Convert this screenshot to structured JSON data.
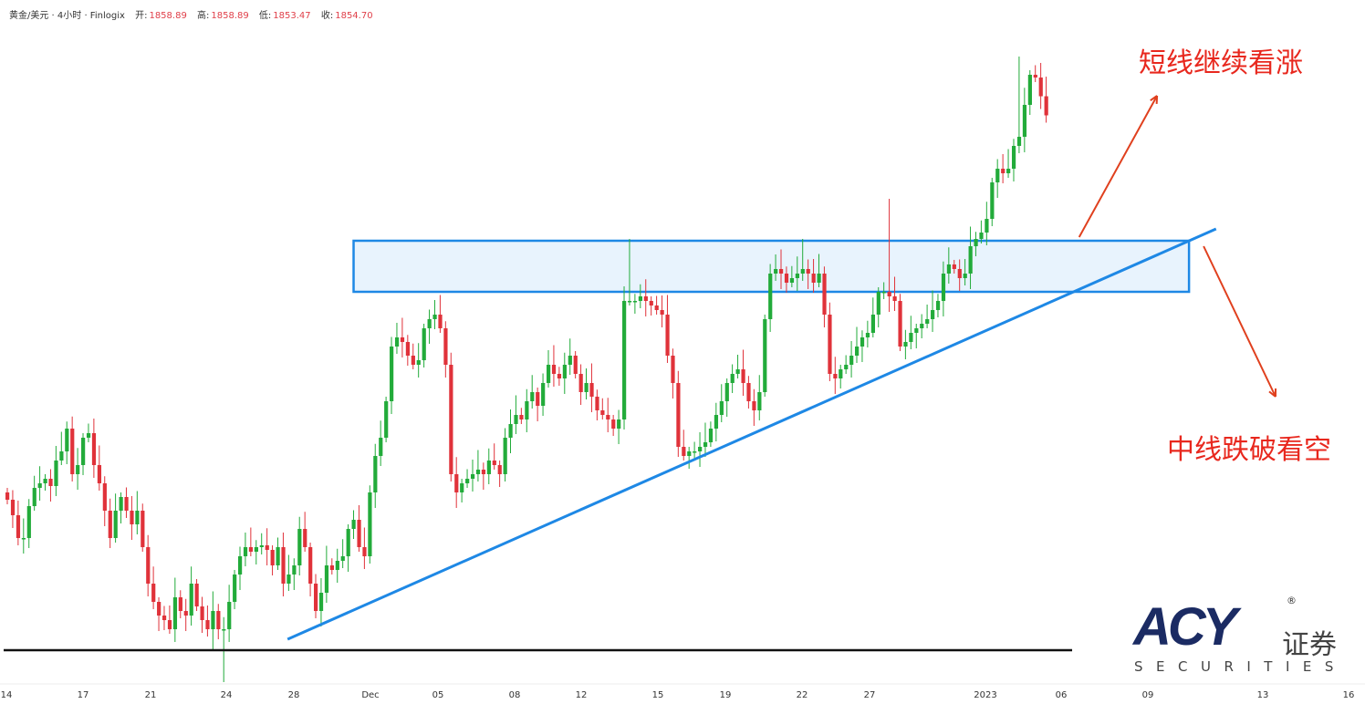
{
  "header": {
    "symbol": "黄金/美元 · 4小时 · Finlogix",
    "open_label": "开:",
    "open": "1858.89",
    "high_label": "高:",
    "high": "1858.89",
    "low_label": "低:",
    "low": "1853.47",
    "close_label": "收:",
    "close": "1854.70"
  },
  "annotations_text": {
    "bullish": "短线继续看涨",
    "bearish": "中线跌破看空"
  },
  "logo": {
    "brand": "ACY",
    "reg": "®",
    "cn": "证券",
    "sub": "SECURITIES"
  },
  "colors": {
    "up": "#22ab3a",
    "down": "#e0323a",
    "trend": "#1e88e5",
    "zone_fill": "#e8f3fd",
    "arrow": "#e0401e",
    "support": "#111111"
  },
  "chart_data": {
    "type": "candlestick",
    "title": "黄金/美元 · 4小时",
    "xlabel": "",
    "ylabel": "",
    "x_ticks": [
      "14",
      "17",
      "21",
      "24",
      "28",
      "Dec",
      "05",
      "08",
      "12",
      "15",
      "19",
      "22",
      "27",
      "2023",
      "06",
      "09",
      "13",
      "16"
    ],
    "ylim": [
      1726,
      1880
    ],
    "closes": [
      1770.4,
      1767,
      1762,
      1762,
      1769,
      1773,
      1774,
      1775,
      1773.4,
      1779,
      1781,
      1786,
      1776,
      1778,
      1784,
      1785,
      1778,
      1774,
      1768,
      1762,
      1768,
      1771,
      1768,
      1765,
      1768,
      1760,
      1752,
      1748,
      1745,
      1744,
      1742,
      1749,
      1746,
      1745,
      1752,
      1747,
      1744,
      1742,
      1746,
      1742,
      1742,
      1748,
      1754,
      1758,
      1760,
      1759,
      1760,
      1760.4,
      1759.4,
      1756,
      1760,
      1752,
      1754,
      1756,
      1764,
      1760,
      1752,
      1746,
      1750,
      1756,
      1755,
      1757,
      1758,
      1764,
      1766,
      1760,
      1758,
      1772,
      1780,
      1784,
      1792,
      1804,
      1806,
      1805,
      1802,
      1800,
      1801,
      1808,
      1810,
      1811,
      1808,
      1800,
      1776,
      1772,
      1774,
      1775,
      1776,
      1777,
      1776,
      1779,
      1778,
      1776,
      1784,
      1787,
      1789,
      1788,
      1792,
      1794,
      1791,
      1796,
      1800,
      1798,
      1797,
      1800,
      1802,
      1798,
      1794,
      1796,
      1793,
      1790,
      1789,
      1788,
      1786,
      1788,
      1814,
      1814,
      1814,
      1815,
      1814,
      1813,
      1812,
      1811,
      1802,
      1796,
      1782,
      1780,
      1781,
      1781,
      1782,
      1783,
      1786,
      1789,
      1792,
      1796,
      1798,
      1799,
      1796,
      1792,
      1790,
      1794,
      1810,
      1820,
      1821,
      1820,
      1818,
      1819,
      1820,
      1821,
      1820,
      1818,
      1820,
      1811,
      1798,
      1797,
      1799,
      1800,
      1802,
      1804,
      1806,
      1807,
      1811,
      1816,
      1816,
      1815,
      1814,
      1804,
      1805,
      1807,
      1808,
      1809,
      1810,
      1812,
      1814,
      1820,
      1822,
      1821,
      1819,
      1820,
      1826,
      1827.6,
      1829,
      1832,
      1840,
      1843,
      1842,
      1843,
      1848,
      1850,
      1857,
      1863.6,
      1863,
      1858.89,
      1854.7
    ],
    "first_open": 1772,
    "high_overrides": {
      "115": 1827.6,
      "147": 1827.6,
      "163": 1836.4,
      "187": 1867.6
    },
    "low_overrides": {
      "40": 1730.4,
      "38": 1737.4
    },
    "support_level": 1737.4,
    "resistance_zone": {
      "top": 1827.2,
      "bottom": 1816,
      "from_bar": 64,
      "to_bar": 218.4
    },
    "trendline": {
      "from": [
        51.8,
        1739.8
      ],
      "to": [
        223.4,
        1829.8
      ]
    },
    "support_line_bars": [
      0,
      196.8
    ],
    "arrows": [
      {
        "from": [
          198.1,
          1828
        ],
        "to": [
          212.5,
          1859
        ],
        "label": "短线继续看涨"
      },
      {
        "from": [
          221.1,
          1826
        ],
        "to": [
          234.4,
          1793
        ],
        "label": "中线跌破看空"
      }
    ],
    "grid": false
  }
}
